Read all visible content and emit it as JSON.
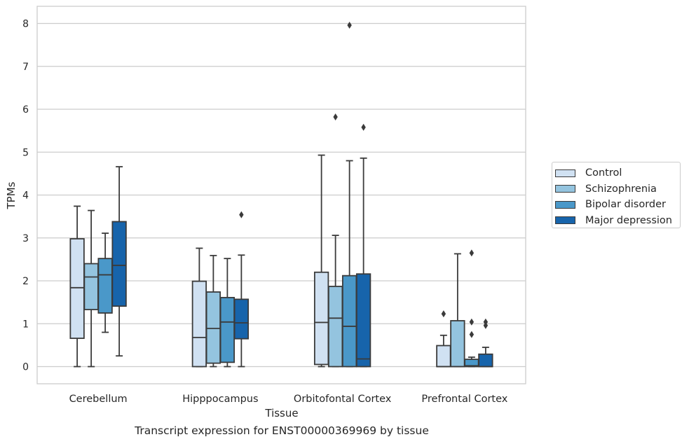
{
  "chart_data": {
    "type": "boxplot",
    "xlabel": "Tissue",
    "ylabel": "TPMs",
    "ylim": [
      -0.4,
      8.4
    ],
    "yticks": [
      0,
      1,
      2,
      3,
      4,
      5,
      6,
      7,
      8
    ],
    "grid": "horizontal",
    "legend_position": "outside-right",
    "categories": [
      "Cerebellum",
      "Hipppocampus",
      "Orbitofontal Cortex",
      "Prefrontal Cortex"
    ],
    "series": [
      {
        "name": "Control",
        "color": "#d0e1f2",
        "boxes": [
          {
            "whislo": 0.0,
            "q1": 0.66,
            "med": 1.84,
            "q3": 2.98,
            "whishi": 3.74,
            "fliers": []
          },
          {
            "whislo": 0.0,
            "q1": 0.0,
            "med": 0.68,
            "q3": 1.99,
            "whishi": 2.76,
            "fliers": []
          },
          {
            "whislo": 0.0,
            "q1": 0.05,
            "med": 1.03,
            "q3": 2.2,
            "whishi": 4.93,
            "fliers": []
          },
          {
            "whislo": 0.0,
            "q1": 0.0,
            "med": 0.0,
            "q3": 0.49,
            "whishi": 0.73,
            "fliers": [
              1.23
            ]
          }
        ]
      },
      {
        "name": "Schizophrenia",
        "color": "#94c4df",
        "boxes": [
          {
            "whislo": 0.0,
            "q1": 1.33,
            "med": 2.09,
            "q3": 2.4,
            "whishi": 3.64,
            "fliers": []
          },
          {
            "whislo": 0.0,
            "q1": 0.08,
            "med": 0.89,
            "q3": 1.74,
            "whishi": 2.59,
            "fliers": []
          },
          {
            "whislo": 0.0,
            "q1": 0.0,
            "med": 1.13,
            "q3": 1.87,
            "whishi": 3.06,
            "fliers": [
              5.82
            ]
          },
          {
            "whislo": 0.0,
            "q1": 0.0,
            "med": 0.0,
            "q3": 1.07,
            "whishi": 2.63,
            "fliers": []
          }
        ]
      },
      {
        "name": "Bipolar disorder",
        "color": "#4a98c9",
        "boxes": [
          {
            "whislo": 0.8,
            "q1": 1.25,
            "med": 2.14,
            "q3": 2.52,
            "whishi": 3.11,
            "fliers": []
          },
          {
            "whislo": 0.0,
            "q1": 0.1,
            "med": 1.04,
            "q3": 1.61,
            "whishi": 2.52,
            "fliers": []
          },
          {
            "whislo": 0.0,
            "q1": 0.0,
            "med": 0.94,
            "q3": 2.12,
            "whishi": 4.8,
            "fliers": [
              7.96
            ]
          },
          {
            "whislo": 0.0,
            "q1": 0.0,
            "med": 0.02,
            "q3": 0.17,
            "whishi": 0.22,
            "fliers": [
              0.75,
              1.04,
              2.65
            ]
          }
        ]
      },
      {
        "name": "Major depression",
        "color": "#1764ab",
        "boxes": [
          {
            "whislo": 0.25,
            "q1": 1.41,
            "med": 2.36,
            "q3": 3.38,
            "whishi": 4.66,
            "fliers": []
          },
          {
            "whislo": 0.0,
            "q1": 0.65,
            "med": 1.02,
            "q3": 1.57,
            "whishi": 2.6,
            "fliers": [
              3.54
            ]
          },
          {
            "whislo": 0.0,
            "q1": 0.0,
            "med": 0.18,
            "q3": 2.16,
            "whishi": 4.86,
            "fliers": [
              5.58
            ]
          },
          {
            "whislo": 0.0,
            "q1": 0.0,
            "med": 0.0,
            "q3": 0.29,
            "whishi": 0.45,
            "fliers": [
              0.96,
              1.04
            ]
          }
        ]
      }
    ]
  },
  "caption": "Transcript expression for ENST00000369969 by tissue"
}
